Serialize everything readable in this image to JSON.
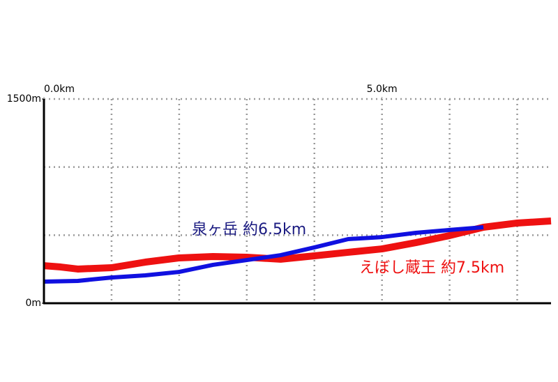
{
  "chart_data": {
    "type": "line",
    "series": [
      {
        "name": "泉ヶ岳 約6.5km",
        "color": "#1010e0",
        "x": [
          0,
          0.5,
          1.0,
          1.5,
          2.0,
          2.5,
          3.0,
          3.5,
          4.0,
          4.5,
          5.0,
          5.5,
          6.0,
          6.5
        ],
        "values": [
          159,
          164,
          189,
          205,
          230,
          282,
          317,
          353,
          410,
          471,
          486,
          517,
          538,
          558
        ]
      },
      {
        "name": "えぼし蔵王 約7.5km",
        "color": "#ee1111",
        "x": [
          0,
          0.25,
          0.5,
          1.0,
          1.5,
          2.0,
          2.5,
          3.0,
          3.5,
          4.0,
          4.5,
          5.0,
          5.5,
          6.0,
          6.5,
          7.0,
          7.5
        ],
        "values": [
          276,
          266,
          251,
          261,
          302,
          333,
          343,
          338,
          323,
          348,
          374,
          399,
          445,
          497,
          558,
          589,
          604
        ]
      }
    ],
    "xlim": [
      0,
      7.5
    ],
    "xticks": [
      {
        "value": 0,
        "label": "0.0km"
      },
      {
        "value": 5,
        "label": "5.0km"
      }
    ],
    "xgrid": [
      1,
      2,
      3,
      4,
      5,
      6,
      7
    ],
    "ylim": [
      0,
      1500
    ],
    "yticks": [
      {
        "value": 0,
        "label": "0m"
      },
      {
        "value": 1500,
        "label": "1500m"
      }
    ],
    "ygrid": [
      500,
      1000,
      1500
    ],
    "grid": true
  }
}
